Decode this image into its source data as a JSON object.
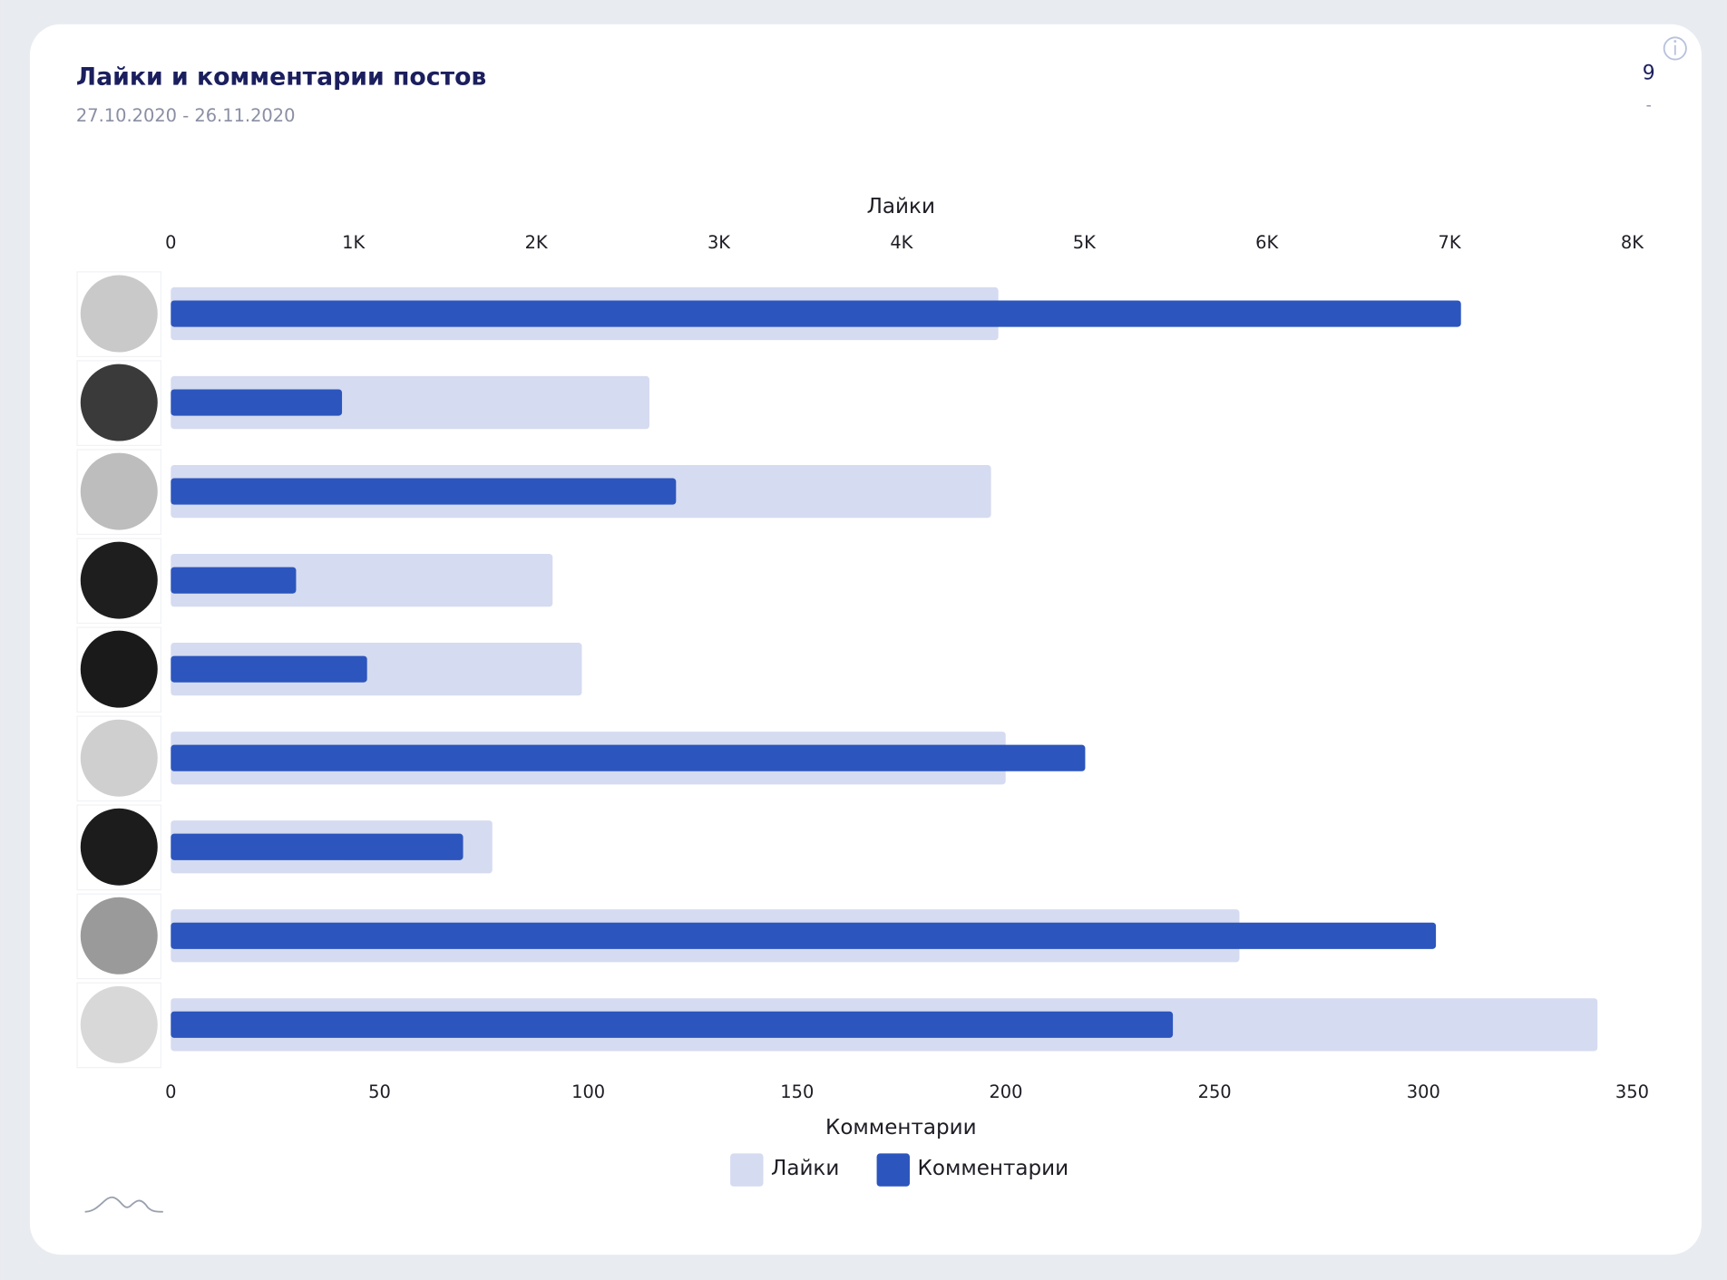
{
  "chart_data": {
    "type": "bar",
    "orientation": "horizontal",
    "title": "Лайки и комментарии постов",
    "subtitle": "27.10.2020 - 26.11.2020",
    "counter": "9",
    "counter_note": "-",
    "xlabel": "Лайки",
    "x2label": "Комментарии",
    "categories": [
      null,
      null,
      null,
      null,
      null,
      null,
      null,
      null,
      null
    ],
    "series": [
      {
        "name": "Лайки",
        "color": "#d5dbf0",
        "axis": "x",
        "values": [
          4530,
          2620,
          4490,
          2090,
          2250,
          4570,
          1760,
          5850,
          7810
        ]
      },
      {
        "name": "Комментарии",
        "color": "#2c55bd",
        "axis": "x2",
        "values": [
          309,
          41,
          121,
          30,
          47,
          219,
          70,
          303,
          240
        ]
      }
    ],
    "xlim": [
      0,
      8000
    ],
    "xticks": [
      0,
      {
        "value": 1000,
        "label": "1K"
      },
      {
        "value": 2000,
        "label": "2K"
      },
      {
        "value": 3000,
        "label": "3K"
      },
      {
        "value": 4000,
        "label": "4K"
      },
      {
        "value": 5000,
        "label": "5K"
      },
      {
        "value": 6000,
        "label": "6K"
      },
      {
        "value": 7000,
        "label": "7K"
      },
      {
        "value": 8000,
        "label": "8K"
      }
    ],
    "x2lim": [
      0,
      350
    ],
    "x2ticks": [
      0,
      50,
      100,
      150,
      200,
      250,
      300,
      350
    ],
    "grid": false,
    "legend": "bottom"
  }
}
